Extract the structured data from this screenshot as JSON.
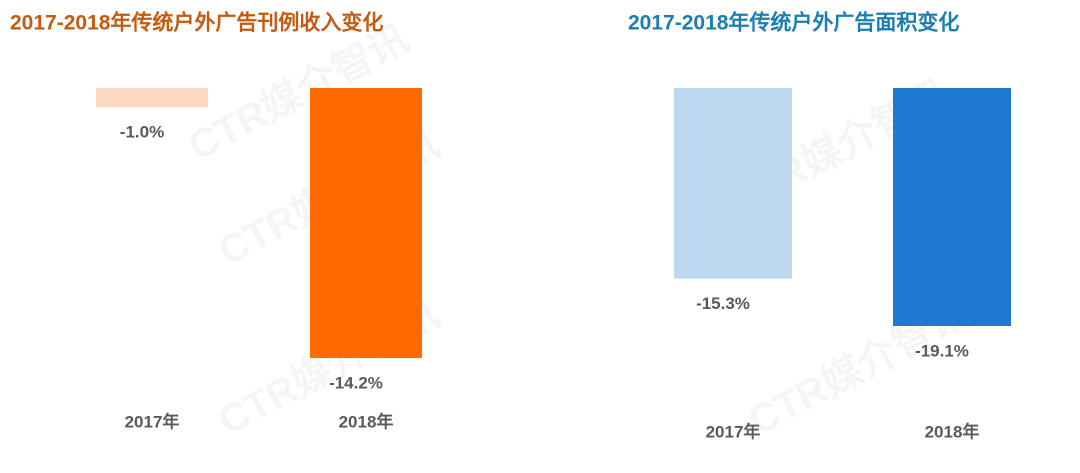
{
  "watermark": "CTR媒介智讯",
  "chart_data": [
    {
      "type": "bar",
      "title": "2017-2018年传统户外广告刊例收入变化",
      "title_color": "#c55a11",
      "categories": [
        "2017年",
        "2018年"
      ],
      "values": [
        -1.0,
        -14.2
      ],
      "value_labels": [
        "-1.0%",
        "-14.2%"
      ],
      "colors": [
        "#fdd9c4",
        "#ff6a00"
      ]
    },
    {
      "type": "bar",
      "title": "2017-2018年传统户外广告面积变化",
      "title_color": "#1a7fb0",
      "categories": [
        "2017年",
        "2018年"
      ],
      "values": [
        -15.3,
        -19.1
      ],
      "value_labels": [
        "-15.3%",
        "-19.1%"
      ],
      "colors": [
        "#bdd9f2",
        "#1f78d1"
      ]
    }
  ]
}
